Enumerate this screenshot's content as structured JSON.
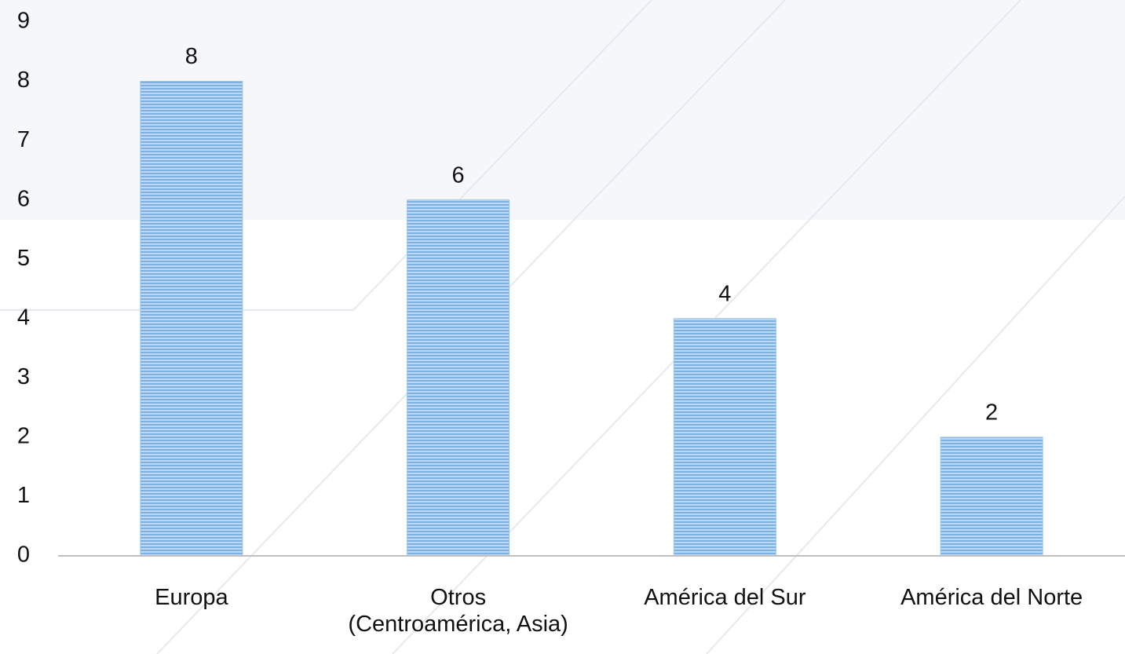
{
  "chart_data": {
    "type": "bar",
    "categories": [
      "Europa",
      "Otros\n(Centroamérica, Asia)",
      "América del Sur",
      "América del Norte"
    ],
    "values": [
      8,
      6,
      4,
      2
    ],
    "color": "#9dc3e6",
    "ylim": [
      0,
      9
    ],
    "yticks": [
      0,
      1,
      2,
      3,
      4,
      5,
      6,
      7,
      8,
      9
    ],
    "grid": false
  }
}
